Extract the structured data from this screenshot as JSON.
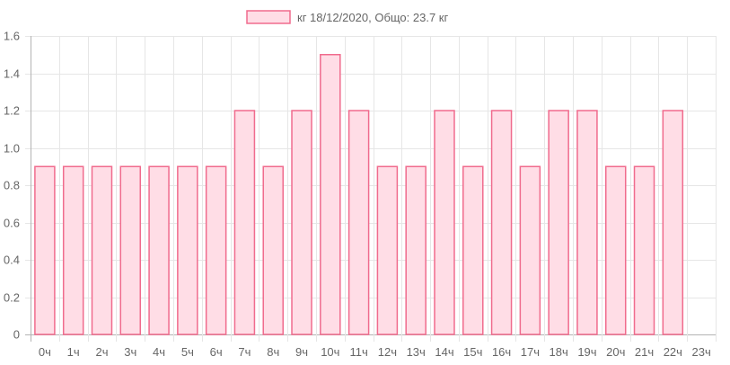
{
  "chart_data": {
    "type": "bar",
    "title": "",
    "legend": {
      "label": "кг 18/12/2020, Общо: 23.7 кг",
      "position": "top-center"
    },
    "categories": [
      "0ч",
      "1ч",
      "2ч",
      "3ч",
      "4ч",
      "5ч",
      "6ч",
      "7ч",
      "8ч",
      "9ч",
      "10ч",
      "11ч",
      "12ч",
      "13ч",
      "14ч",
      "15ч",
      "16ч",
      "17ч",
      "18ч",
      "19ч",
      "20ч",
      "21ч",
      "22ч",
      "23ч"
    ],
    "series": [
      {
        "name": "кг 18/12/2020, Общо: 23.7 кг",
        "values": [
          0.9,
          0.9,
          0.9,
          0.9,
          0.9,
          0.9,
          0.9,
          1.2,
          0.9,
          1.2,
          1.5,
          1.2,
          0.9,
          0.9,
          1.2,
          0.9,
          1.2,
          0.9,
          1.2,
          1.2,
          0.9,
          0.9,
          1.2,
          null
        ]
      }
    ],
    "y_ticks": [
      "0",
      "0.2",
      "0.4",
      "0.6",
      "0.8",
      "1.0",
      "1.2",
      "1.4",
      "1.6"
    ],
    "ylim": [
      0,
      1.6
    ],
    "xlabel": "",
    "ylabel": "",
    "grid": true,
    "colors": {
      "bar_fill": "#ffdde6",
      "bar_stroke": "#f06b8d",
      "grid": "#e6e6e6",
      "axis": "#b3b3b3"
    }
  }
}
